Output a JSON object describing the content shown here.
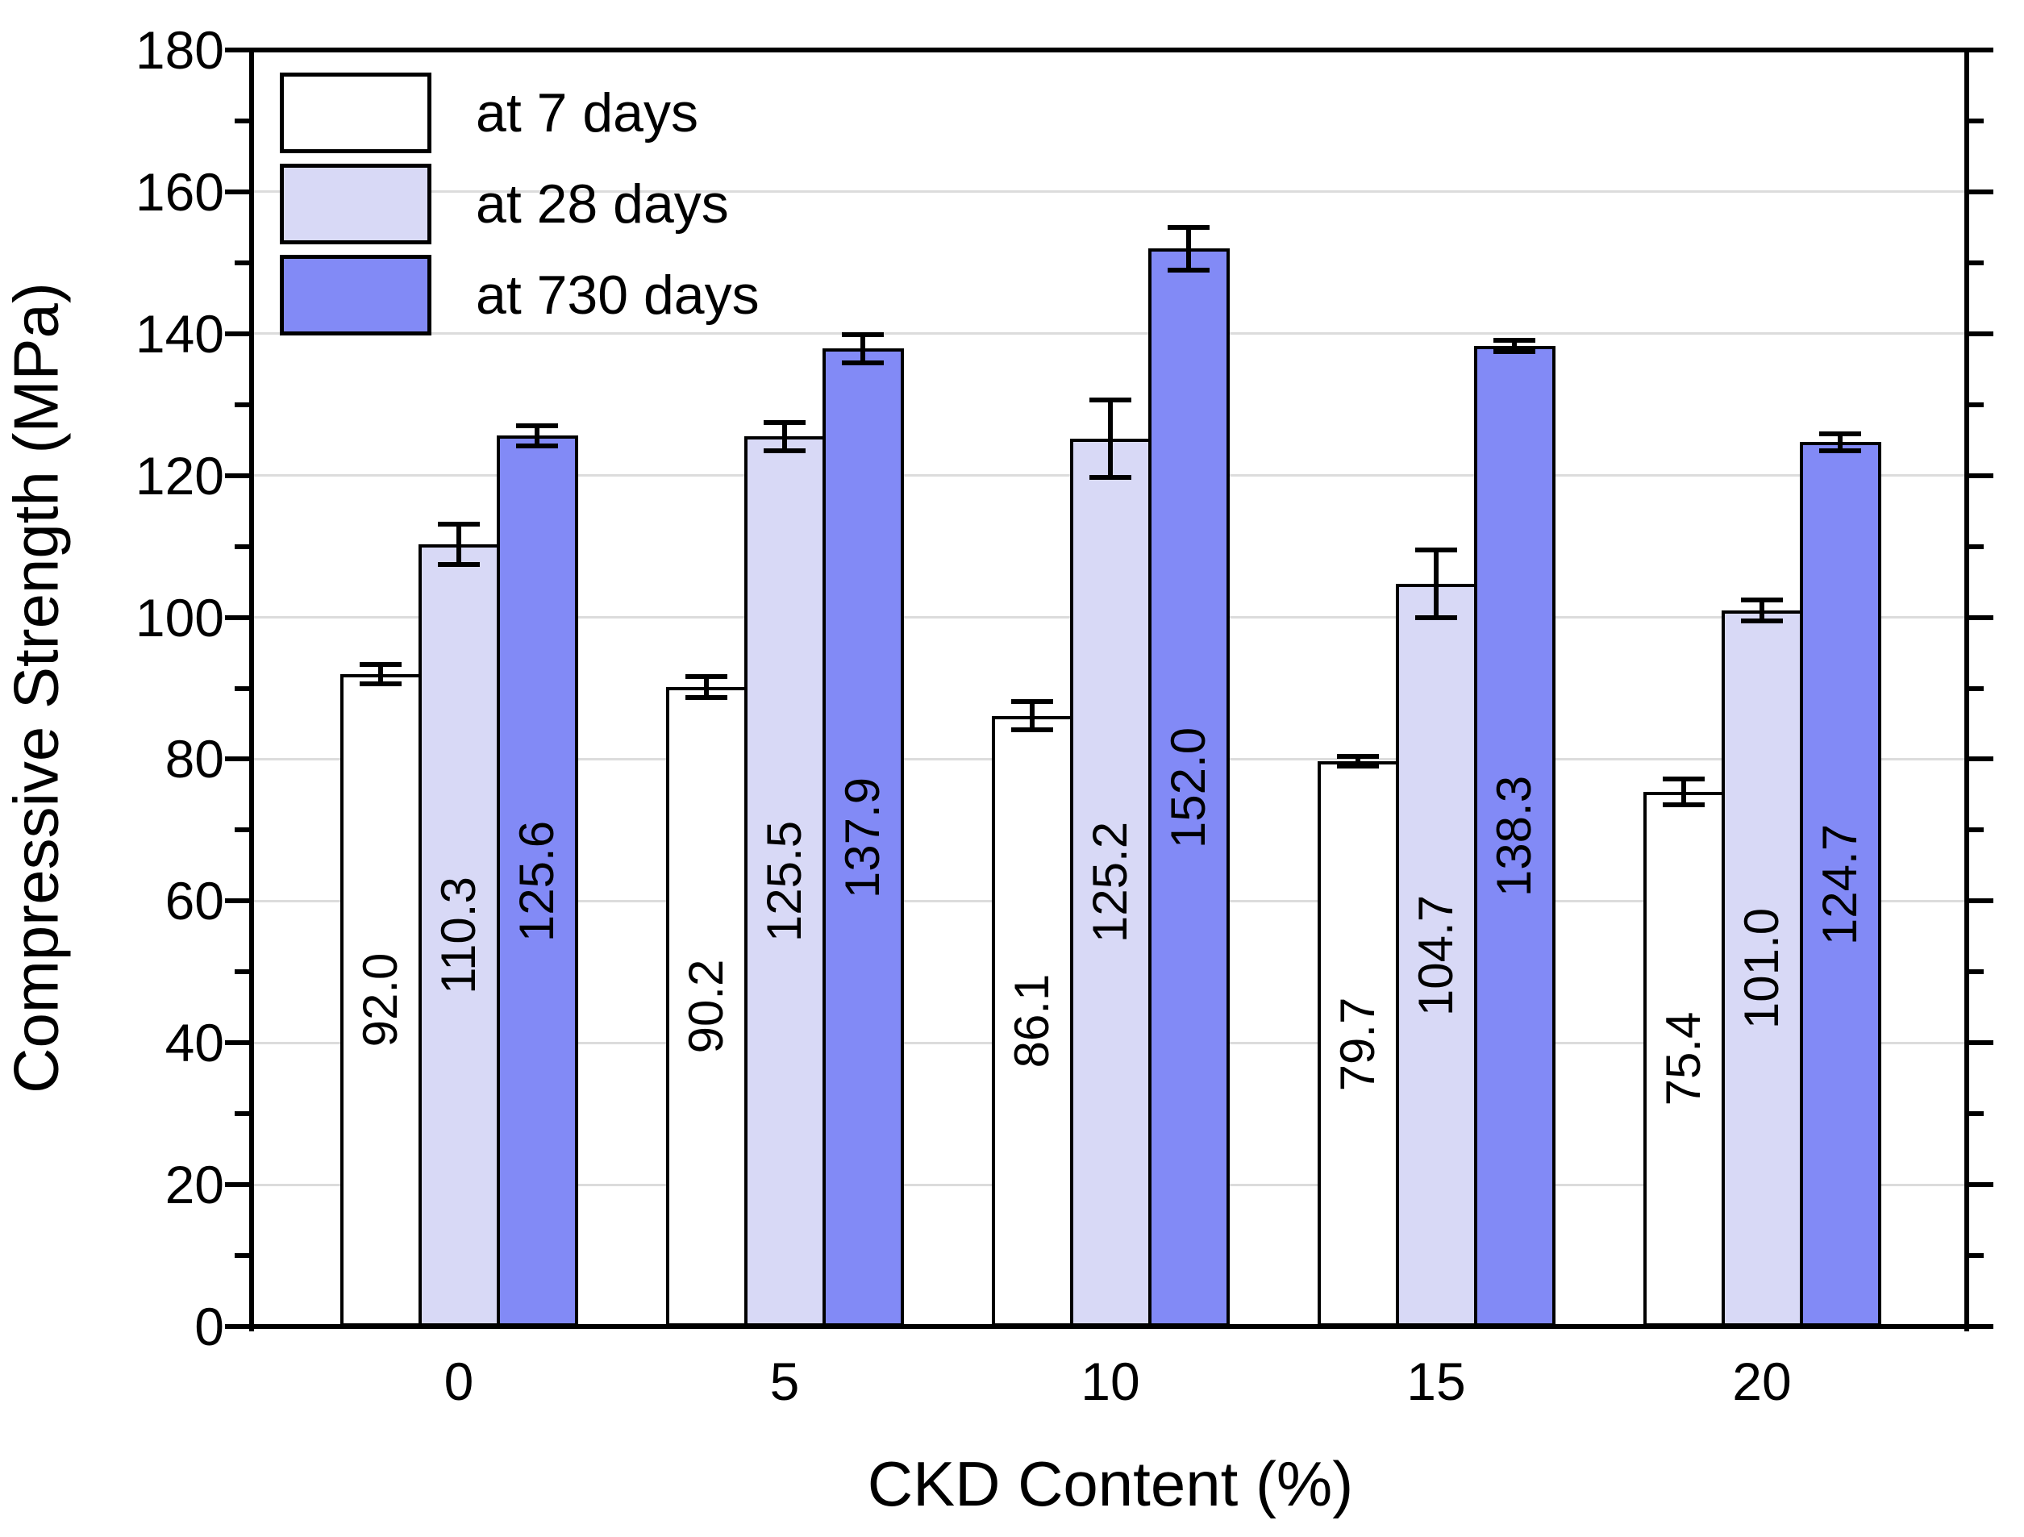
{
  "chart_data": {
    "type": "bar",
    "title": "",
    "xlabel": "CKD Content (%)",
    "ylabel": "Compressive Strength (MPa)",
    "categories": [
      "0",
      "5",
      "10",
      "15",
      "20"
    ],
    "series": [
      {
        "name": "at 7 days",
        "fill": "#ffffff",
        "values": [
          92.0,
          90.2,
          86.1,
          79.7,
          75.4
        ],
        "errors": [
          1.4,
          1.5,
          2.0,
          0.7,
          1.8
        ]
      },
      {
        "name": "at 28 days",
        "fill": "#d8d9f6",
        "values": [
          110.3,
          125.5,
          125.2,
          104.7,
          101.0
        ],
        "errors": [
          2.8,
          2.0,
          5.5,
          4.8,
          1.5
        ]
      },
      {
        "name": "at 730 days",
        "fill": "#828af6",
        "values": [
          125.6,
          137.9,
          152.0,
          138.3,
          124.7
        ],
        "errors": [
          1.4,
          2.0,
          3.0,
          0.8,
          1.2
        ]
      }
    ],
    "bar_value_labels": [
      [
        "92.0",
        "110.3",
        "125.6"
      ],
      [
        "90.2",
        "125.5",
        "137.9"
      ],
      [
        "86.1",
        "125.2",
        "152.0"
      ],
      [
        "79.7",
        "104.7",
        "138.3"
      ],
      [
        "75.4",
        "101.0",
        "124.7"
      ]
    ],
    "ylim": [
      0,
      180
    ],
    "yticks": [
      0,
      20,
      40,
      60,
      80,
      100,
      120,
      140,
      160,
      180
    ],
    "ytick_minor_step": 10,
    "grid": "horizontal-major",
    "gridline_color": "#dcdcdc",
    "bar_outline_color": "#000000",
    "legend_position": "top-left"
  }
}
